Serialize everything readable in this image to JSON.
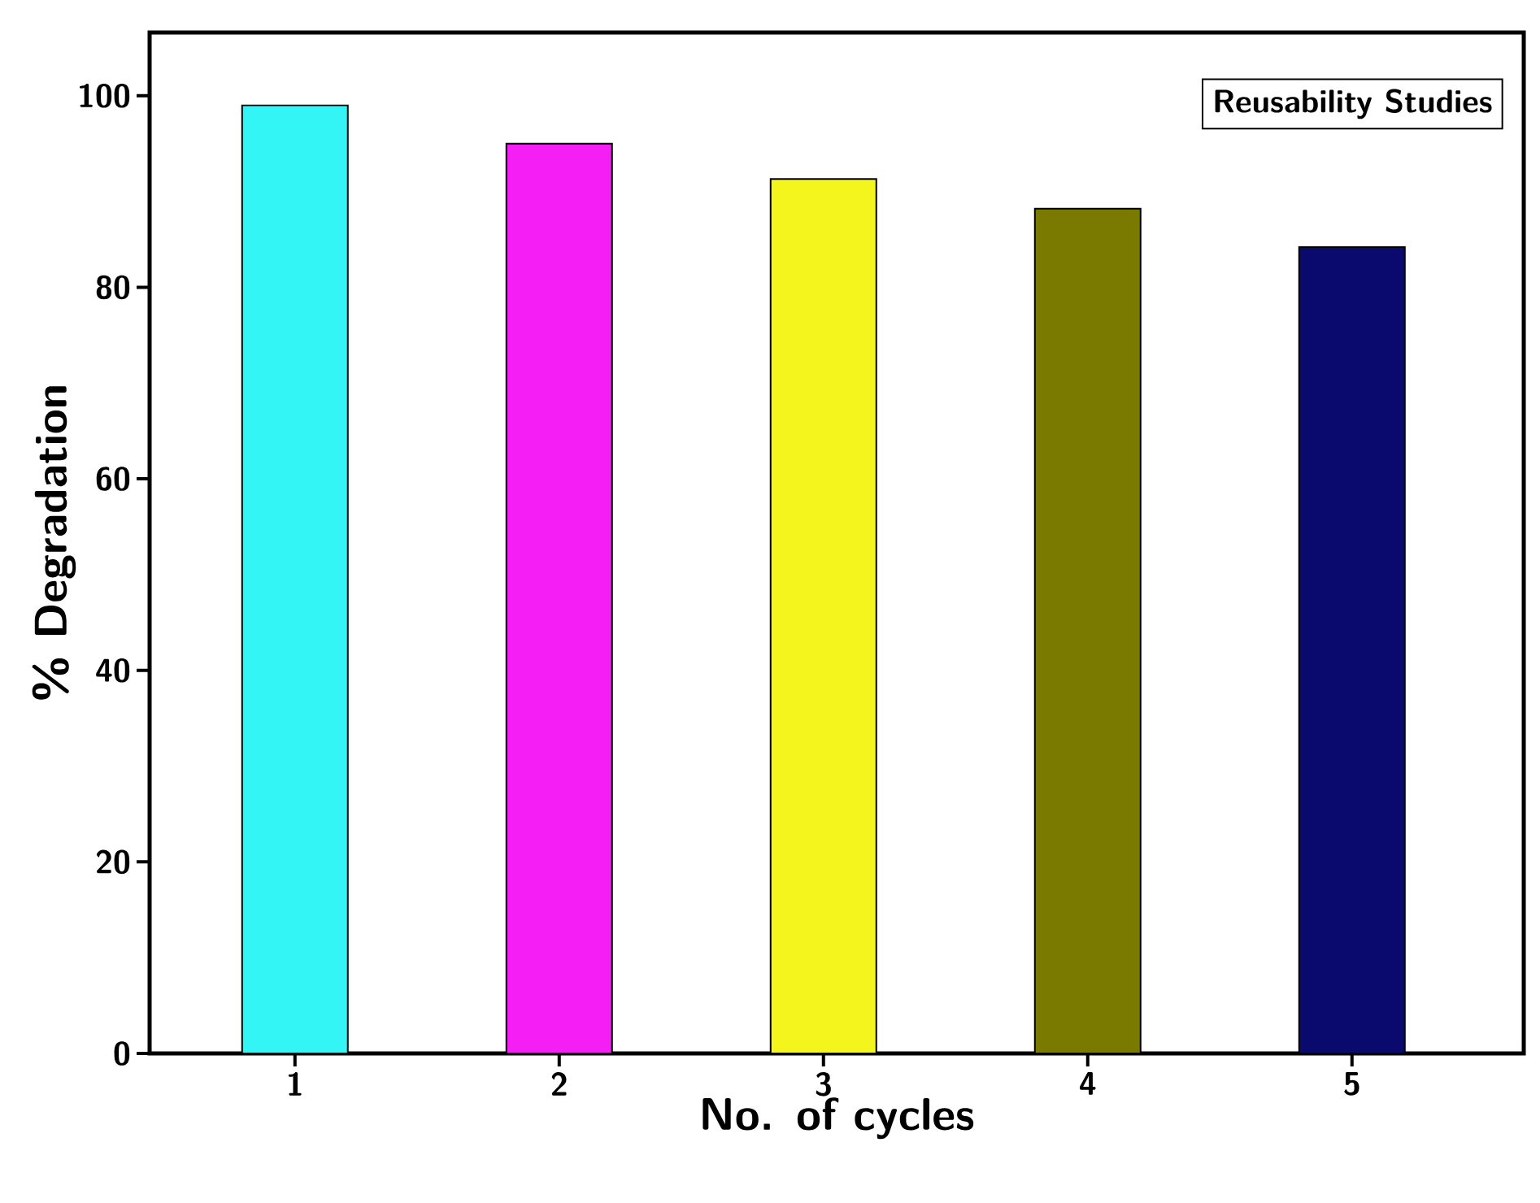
{
  "chart_data": {
    "type": "bar",
    "title": "Reusability Studies",
    "xlabel": "No. of cycles",
    "ylabel": "% Degradation",
    "categories": [
      "1",
      "2",
      "3",
      "4",
      "5"
    ],
    "values": [
      99,
      95,
      91.3,
      88.2,
      84.2
    ],
    "colors": [
      "#33f5f5",
      "#f51ef5",
      "#f5f51e",
      "#7a7a00",
      "#0a0a6e"
    ],
    "ylim": [
      0,
      106.6
    ],
    "yticks": [
      0,
      20,
      40,
      60,
      80,
      100
    ],
    "grid": false
  }
}
